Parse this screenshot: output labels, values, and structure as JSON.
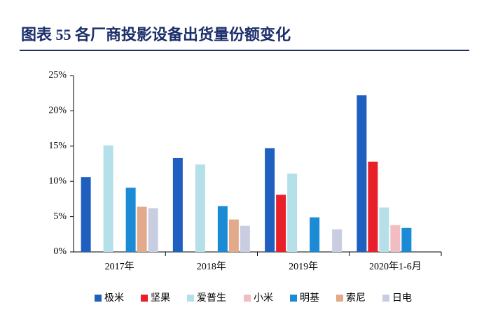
{
  "chart_data": {
    "type": "bar",
    "title": "图表 55  各厂商投影设备出货量份额变化",
    "categories": [
      "2017年",
      "2018年",
      "2019年",
      "2020年1-6月"
    ],
    "series": [
      {
        "name": "极米",
        "color": "#1f5fbf",
        "values": [
          10.6,
          13.3,
          14.7,
          22.2
        ]
      },
      {
        "name": "坚果",
        "color": "#e8202a",
        "values": [
          null,
          null,
          8.1,
          12.8
        ]
      },
      {
        "name": "爱普生",
        "color": "#b5dfe9",
        "values": [
          15.1,
          12.4,
          11.1,
          6.3
        ]
      },
      {
        "name": "小米",
        "color": "#f1bcc2",
        "values": [
          null,
          null,
          null,
          3.8
        ]
      },
      {
        "name": "明基",
        "color": "#1b8bd6",
        "values": [
          9.1,
          6.5,
          4.9,
          3.4
        ]
      },
      {
        "name": "索尼",
        "color": "#e2aa8a",
        "values": [
          6.4,
          4.6,
          null,
          null
        ]
      },
      {
        "name": "日电",
        "color": "#c9cde2",
        "values": [
          6.2,
          3.7,
          3.2,
          null
        ]
      }
    ],
    "ylim": [
      0,
      25
    ],
    "yticks": [
      {
        "value": 0,
        "label": "0%"
      },
      {
        "value": 5,
        "label": "5%"
      },
      {
        "value": 10,
        "label": "10%"
      },
      {
        "value": 15,
        "label": "15%"
      },
      {
        "value": 20,
        "label": "20%"
      },
      {
        "value": 25,
        "label": "25%"
      }
    ],
    "legend": "bottom"
  }
}
